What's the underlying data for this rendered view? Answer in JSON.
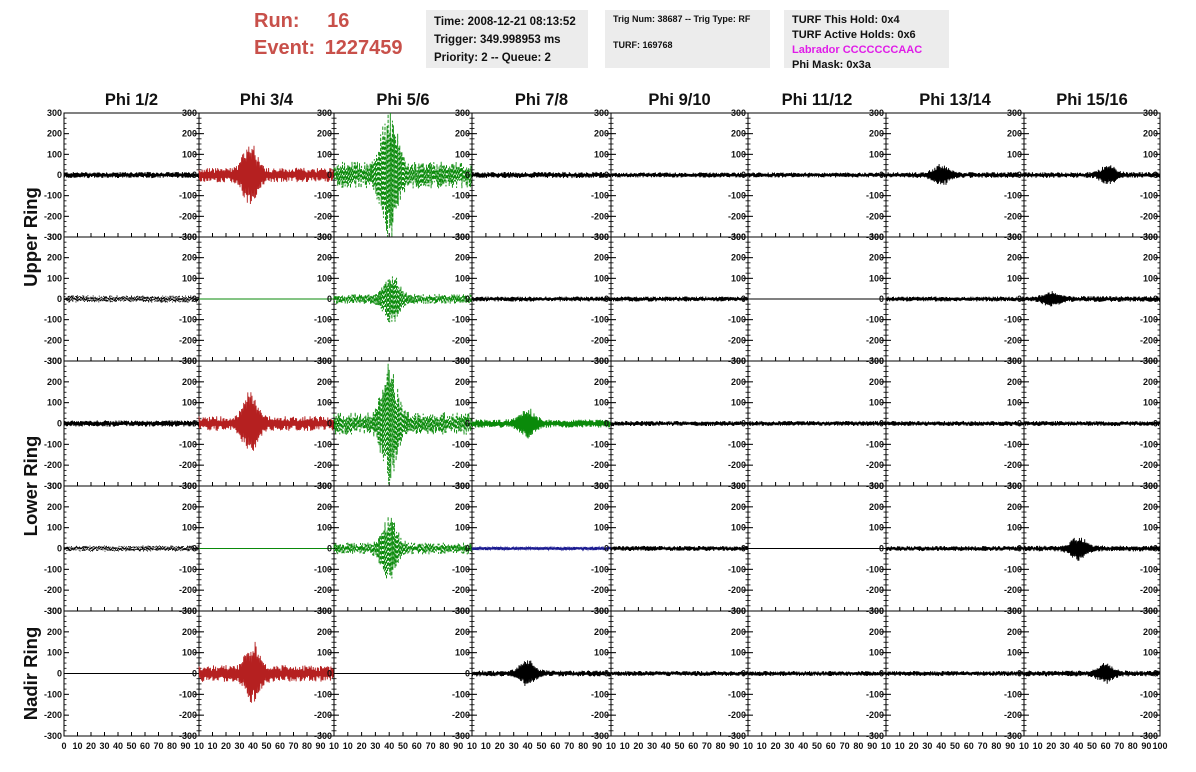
{
  "header": {
    "run_label": "Run:",
    "run_value": "16",
    "event_label": "Event:",
    "event_value": "1227459",
    "time_line": "Time: 2008-12-21 08:13:52",
    "trigger_line": "Trigger: 349.998953 ms",
    "priority_line": "Priority: 2 -- Queue: 2",
    "trig_num_line": "Trig Num: 38687 -- Trig Type: RF",
    "turf_line": "TURF: 169768",
    "turf_hold_line": "TURF This Hold: 0x4",
    "turf_active_line": "TURF Active Holds: 0x6",
    "labrador_line": "Labrador CCCCCCCAAC",
    "phi_mask_line": "Phi Mask: 0x3a"
  },
  "colors": {
    "header_run": "#c8504a",
    "labrador": "#e01ce8",
    "black_trace": "#000000",
    "red_trace": "#b52020",
    "green_trace": "#0a8a0a",
    "blue_trace": "#1a1a90"
  },
  "chart_data": {
    "type": "line",
    "columns": [
      "Phi 1/2",
      "Phi 3/4",
      "Phi 5/6",
      "Phi 7/8",
      "Phi 9/10",
      "Phi 11/12",
      "Phi 13/14",
      "Phi 15/16"
    ],
    "rows": [
      "Upper Ring",
      "",
      "Lower Ring",
      "",
      "Nadir Ring"
    ],
    "ylim": [
      -300,
      300
    ],
    "yticks": [
      300,
      200,
      100,
      0,
      -100,
      -200,
      -300
    ],
    "xlim": [
      0,
      100
    ],
    "xticks": [
      0,
      10,
      20,
      30,
      40,
      50,
      60,
      70,
      80,
      90,
      100
    ],
    "xtick_labels": [
      "0",
      "10",
      "20",
      "30",
      "40",
      "50",
      "60",
      "70",
      "80",
      "90",
      "10",
      "10",
      "20",
      "30",
      "40",
      "50",
      "60",
      "70",
      "80",
      "90",
      "10",
      "10",
      "20",
      "30",
      "40",
      "50",
      "60",
      "70",
      "80",
      "90",
      "10",
      "10",
      "20",
      "30",
      "40",
      "50",
      "60",
      "70",
      "80",
      "90",
      "10",
      "10",
      "20",
      "30",
      "40",
      "50",
      "60",
      "70",
      "80",
      "90",
      "10",
      "10",
      "20",
      "30",
      "40",
      "50",
      "60",
      "70",
      "80",
      "90",
      "10",
      "10",
      "20",
      "30",
      "40",
      "50",
      "60",
      "70",
      "80",
      "90",
      "10",
      "10",
      "20",
      "30",
      "40",
      "50",
      "60",
      "70",
      "80",
      "90",
      "100"
    ],
    "grid": false,
    "panels": [
      [
        {
          "color": "black",
          "style": "solid",
          "amp": 15,
          "peak_x": 0,
          "peak_amp": 0
        },
        {
          "color": "red",
          "style": "solid",
          "amp": 35,
          "peak_x": 38,
          "peak_amp": 140
        },
        {
          "color": "green",
          "style": "dashed",
          "amp": 65,
          "peak_x": 40,
          "peak_amp": 310
        },
        {
          "color": "black",
          "style": "solid",
          "amp": 15,
          "peak_x": 0,
          "peak_amp": 0
        },
        {
          "color": "black",
          "style": "solid",
          "amp": 12,
          "peak_x": 0,
          "peak_amp": 0
        },
        {
          "color": "black",
          "style": "solid",
          "amp": 12,
          "peak_x": 0,
          "peak_amp": 0
        },
        {
          "color": "black",
          "style": "solid",
          "amp": 14,
          "peak_x": 40,
          "peak_amp": 45
        },
        {
          "color": "black",
          "style": "solid",
          "amp": 14,
          "peak_x": 62,
          "peak_amp": 40
        }
      ],
      [
        {
          "color": "black",
          "style": "dotted",
          "amp": 18,
          "peak_x": 0,
          "peak_amp": 0
        },
        {
          "color": "green",
          "style": "flat",
          "amp": 0,
          "peak_x": 0,
          "peak_amp": 0
        },
        {
          "color": "green",
          "style": "dashed",
          "amp": 25,
          "peak_x": 42,
          "peak_amp": 110
        },
        {
          "color": "black",
          "style": "solid",
          "amp": 12,
          "peak_x": 0,
          "peak_amp": 0
        },
        {
          "color": "black",
          "style": "solid",
          "amp": 12,
          "peak_x": 0,
          "peak_amp": 0
        },
        {
          "color": "black",
          "style": "flat",
          "amp": 0,
          "peak_x": 0,
          "peak_amp": 0
        },
        {
          "color": "black",
          "style": "solid",
          "amp": 12,
          "peak_x": 0,
          "peak_amp": 0
        },
        {
          "color": "black",
          "style": "solid",
          "amp": 14,
          "peak_x": 20,
          "peak_amp": 30
        }
      ],
      [
        {
          "color": "black",
          "style": "solid",
          "amp": 15,
          "peak_x": 0,
          "peak_amp": 0
        },
        {
          "color": "red",
          "style": "solid",
          "amp": 35,
          "peak_x": 38,
          "peak_amp": 130
        },
        {
          "color": "green",
          "style": "dashed",
          "amp": 55,
          "peak_x": 40,
          "peak_amp": 260
        },
        {
          "color": "green",
          "style": "solid",
          "amp": 20,
          "peak_x": 40,
          "peak_amp": 60
        },
        {
          "color": "black",
          "style": "solid",
          "amp": 12,
          "peak_x": 0,
          "peak_amp": 0
        },
        {
          "color": "black",
          "style": "solid",
          "amp": 12,
          "peak_x": 0,
          "peak_amp": 0
        },
        {
          "color": "black",
          "style": "solid",
          "amp": 12,
          "peak_x": 0,
          "peak_amp": 0
        },
        {
          "color": "black",
          "style": "solid",
          "amp": 12,
          "peak_x": 0,
          "peak_amp": 0
        }
      ],
      [
        {
          "color": "black",
          "style": "dotted",
          "amp": 15,
          "peak_x": 0,
          "peak_amp": 0
        },
        {
          "color": "green",
          "style": "flat",
          "amp": 0,
          "peak_x": 0,
          "peak_amp": 0
        },
        {
          "color": "green",
          "style": "dashed",
          "amp": 28,
          "peak_x": 40,
          "peak_amp": 140
        },
        {
          "color": "blue",
          "style": "solid",
          "amp": 8,
          "peak_x": 0,
          "peak_amp": 0
        },
        {
          "color": "black",
          "style": "solid",
          "amp": 12,
          "peak_x": 0,
          "peak_amp": 0
        },
        {
          "color": "black",
          "style": "flat",
          "amp": 0,
          "peak_x": 0,
          "peak_amp": 0
        },
        {
          "color": "black",
          "style": "solid",
          "amp": 12,
          "peak_x": 0,
          "peak_amp": 0
        },
        {
          "color": "black",
          "style": "solid",
          "amp": 14,
          "peak_x": 40,
          "peak_amp": 55
        }
      ],
      [
        {
          "color": "black",
          "style": "flat",
          "amp": 0,
          "peak_x": 0,
          "peak_amp": 0
        },
        {
          "color": "red",
          "style": "solid",
          "amp": 40,
          "peak_x": 40,
          "peak_amp": 120
        },
        {
          "color": "black",
          "style": "flat",
          "amp": 0,
          "peak_x": 0,
          "peak_amp": 0
        },
        {
          "color": "black",
          "style": "solid",
          "amp": 14,
          "peak_x": 40,
          "peak_amp": 60
        },
        {
          "color": "black",
          "style": "solid",
          "amp": 12,
          "peak_x": 0,
          "peak_amp": 0
        },
        {
          "color": "black",
          "style": "solid",
          "amp": 12,
          "peak_x": 0,
          "peak_amp": 0
        },
        {
          "color": "black",
          "style": "solid",
          "amp": 12,
          "peak_x": 0,
          "peak_amp": 0
        },
        {
          "color": "black",
          "style": "solid",
          "amp": 14,
          "peak_x": 60,
          "peak_amp": 40
        }
      ]
    ]
  }
}
